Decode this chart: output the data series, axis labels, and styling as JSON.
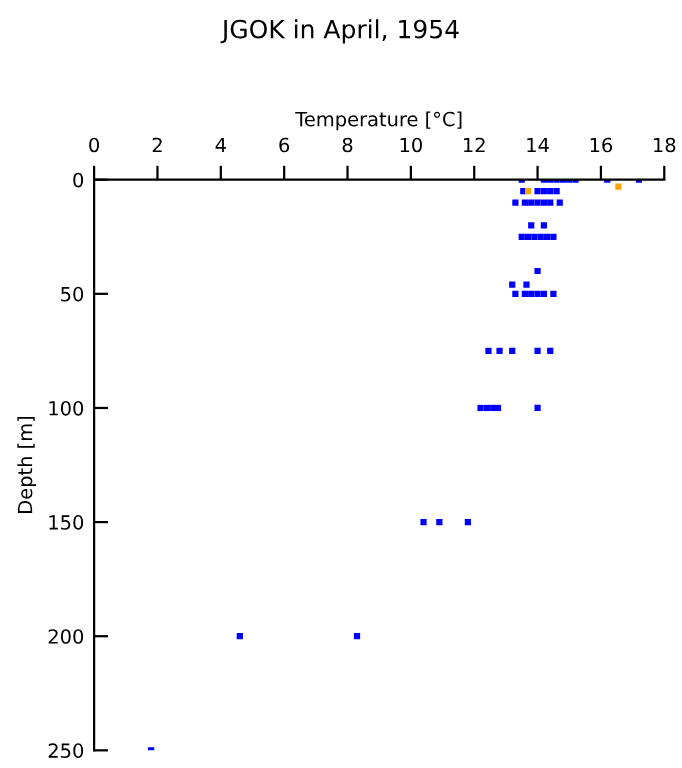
{
  "chart_data": {
    "type": "scatter",
    "title": "JGOK in April, 1954",
    "xlabel": "Temperature [°C]",
    "ylabel": "Depth [m]",
    "xlim": [
      0,
      18
    ],
    "xticks": [
      0,
      2,
      4,
      6,
      8,
      10,
      12,
      14,
      16,
      18
    ],
    "ylim": [
      250,
      0
    ],
    "yticks": [
      0,
      50,
      100,
      150,
      200,
      250
    ],
    "grid": false,
    "marker": "square",
    "series": [
      {
        "color": "#0000ff",
        "x": [
          13.5,
          14.2,
          14.4,
          14.6,
          14.8,
          15.0,
          15.2,
          16.2,
          17.2,
          13.55,
          14.0,
          14.2,
          14.4,
          14.6,
          13.3,
          13.6,
          13.8,
          14.0,
          14.2,
          14.4,
          14.7,
          13.8,
          14.2,
          13.5,
          13.7,
          13.9,
          14.1,
          14.3,
          14.5,
          14.0,
          13.2,
          13.65,
          13.3,
          13.6,
          13.8,
          14.0,
          14.2,
          14.5,
          12.45,
          12.8,
          13.2,
          14.0,
          14.4,
          12.2,
          12.4,
          12.6,
          12.75,
          14.0,
          10.4,
          10.9,
          11.8,
          4.6,
          8.3,
          1.8
        ],
        "values": [
          0,
          0,
          0,
          0,
          0,
          0,
          0,
          0,
          0,
          5,
          5,
          5,
          5,
          5,
          10,
          10,
          10,
          10,
          10,
          10,
          10,
          20,
          20,
          25,
          25,
          25,
          25,
          25,
          25,
          40,
          46,
          46,
          50,
          50,
          50,
          50,
          50,
          50,
          75,
          75,
          75,
          75,
          75,
          100,
          100,
          100,
          100,
          100,
          150,
          150,
          150,
          200,
          200,
          250
        ]
      },
      {
        "color": "#ffa500",
        "x": [
          16.55,
          13.7
        ],
        "values": [
          3,
          5
        ]
      }
    ]
  }
}
